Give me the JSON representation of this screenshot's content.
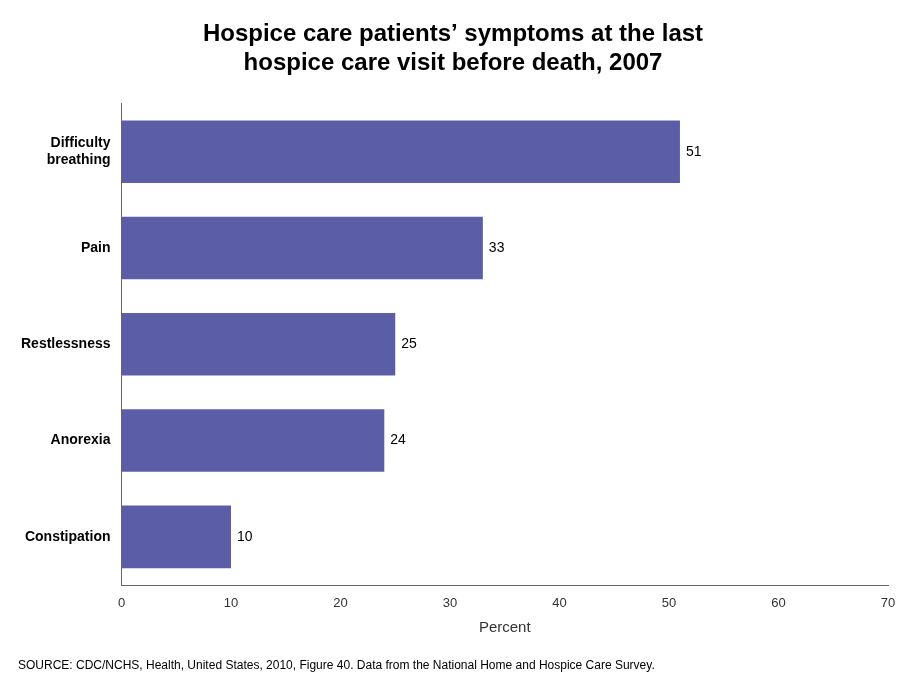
{
  "chart_data": {
    "type": "bar",
    "title": "Hospice care patients’ symptoms at the last\nhospice care visit before death, 2007",
    "categories": [
      "Difficulty\nbreathing",
      "Pain",
      "Restlessness",
      "Anorexia",
      "Constipation"
    ],
    "values": [
      51,
      33,
      25,
      24,
      10
    ],
    "color": "#5b5ea6",
    "orientation": "horizontal",
    "x_label": "Percent",
    "xlim": [
      0,
      70
    ],
    "xticks": [
      0,
      10,
      20,
      30,
      40,
      50,
      60,
      70
    ],
    "grid": false,
    "data_labels": true,
    "annotation": "SOURCE: CDC/NCHS, Health, United States, 2010, Figure 40. Data from the National Home and Hospice Care Survey."
  }
}
